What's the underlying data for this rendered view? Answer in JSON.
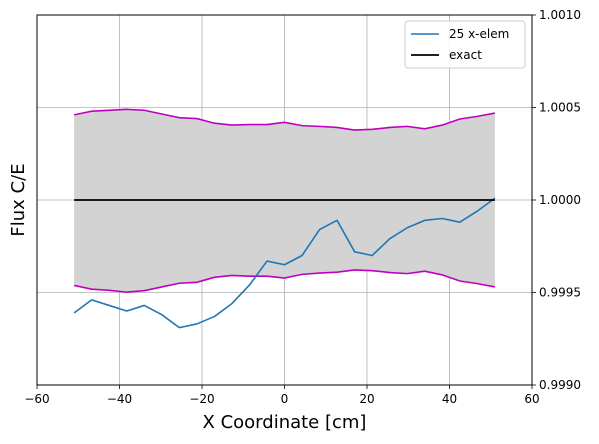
{
  "chart_data": {
    "type": "line",
    "title": "",
    "xlabel": "X Coordinate [cm]",
    "ylabel": "Flux C/E",
    "xlim": [
      -60,
      60
    ],
    "ylim": [
      0.999,
      1.001
    ],
    "xticks": [
      -60,
      -40,
      -20,
      0,
      20,
      40,
      60
    ],
    "xtick_labels": [
      "−60",
      "−40",
      "−20",
      "0",
      "20",
      "40",
      "60"
    ],
    "yticks": [
      0.999,
      0.9995,
      1.0,
      1.0005,
      1.001
    ],
    "ytick_labels": [
      "0.9990",
      "0.9995",
      "1.0000",
      "1.0005",
      "1.0010"
    ],
    "y_axis_side": "right",
    "grid": true,
    "legend": {
      "position": "top-right"
    },
    "band": {
      "fill": "#d3d3d3",
      "edge_color": "#bf00bf",
      "x": [
        -51,
        -46.75,
        -42.5,
        -38.25,
        -34,
        -29.75,
        -25.5,
        -21.25,
        -17,
        -12.75,
        -8.5,
        -4.25,
        0,
        4.25,
        8.5,
        12.75,
        17,
        21.25,
        25.5,
        29.75,
        34,
        38.25,
        42.5,
        46.75,
        51
      ],
      "upper": [
        1.00046,
        1.00048,
        1.000485,
        1.00049,
        1.000485,
        1.000465,
        1.000445,
        1.00044,
        1.000415,
        1.000405,
        1.000408,
        1.000408,
        1.00042,
        1.000402,
        1.000398,
        1.000392,
        1.000378,
        1.000382,
        1.000392,
        1.000398,
        1.000385,
        1.000405,
        1.000438,
        1.000452,
        1.00047
      ],
      "lower": [
        0.999538,
        0.999518,
        0.999512,
        0.999502,
        0.99951,
        0.99953,
        0.99955,
        0.999555,
        0.999582,
        0.999592,
        0.999588,
        0.999588,
        0.999578,
        0.999598,
        0.999605,
        0.99961,
        0.999622,
        0.999618,
        0.999608,
        0.999602,
        0.999615,
        0.999595,
        0.999562,
        0.999548,
        0.99953
      ]
    },
    "series": [
      {
        "name": "25 x-elem",
        "color": "#1f77b4",
        "x": [
          -51,
          -46.75,
          -42.5,
          -38.25,
          -34,
          -29.75,
          -25.5,
          -21.25,
          -17,
          -12.75,
          -8.5,
          -4.25,
          0,
          4.25,
          8.5,
          12.75,
          17,
          21.25,
          25.5,
          29.75,
          34,
          38.25,
          42.5,
          46.75,
          51
        ],
        "y": [
          0.99939,
          0.99946,
          0.99943,
          0.9994,
          0.99943,
          0.99938,
          0.99931,
          0.99933,
          0.99937,
          0.99944,
          0.99954,
          0.99967,
          0.99965,
          0.9997,
          0.99984,
          0.99989,
          0.99972,
          0.9997,
          0.99979,
          0.99985,
          0.99989,
          0.9999,
          0.99988,
          0.99994,
          1.00001
        ]
      },
      {
        "name": "exact",
        "color": "#000000",
        "x": [
          -51,
          51
        ],
        "y": [
          1.0,
          1.0
        ]
      }
    ]
  }
}
